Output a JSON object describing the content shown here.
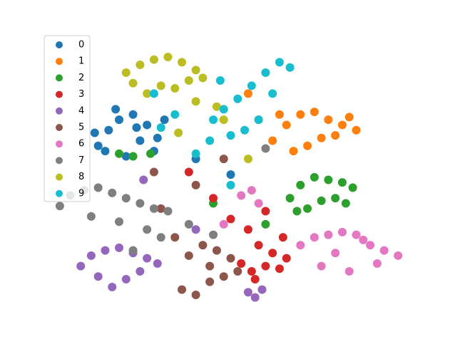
{
  "chart_data": {
    "type": "scatter",
    "xlim": [
      0,
      100
    ],
    "ylim": [
      0,
      100
    ],
    "legend": "upper left",
    "series": [
      {
        "name": "0",
        "color": "#1f77b4",
        "x": [
          12,
          15,
          18,
          22,
          26,
          29,
          14,
          20,
          24,
          17,
          28,
          11,
          23,
          31,
          40,
          50
        ],
        "values": [
          60,
          66,
          70,
          72,
          68,
          63,
          58,
          56,
          62,
          74,
          58,
          65,
          67,
          70,
          55,
          49
        ]
      },
      {
        "name": "1",
        "color": "#ff7f0e",
        "x": [
          62,
          66,
          70,
          74,
          78,
          82,
          86,
          72,
          68,
          76,
          80,
          64,
          84,
          58,
          55
        ],
        "values": [
          62,
          68,
          72,
          73,
          70,
          68,
          66,
          60,
          58,
          63,
          64,
          72,
          71,
          70,
          80
        ]
      },
      {
        "name": "2",
        "color": "#2ca02c",
        "x": [
          67,
          70,
          74,
          78,
          82,
          85,
          72,
          76,
          80,
          69,
          83,
          18,
          22,
          27,
          45,
          60
        ],
        "values": [
          40,
          45,
          48,
          47,
          46,
          44,
          36,
          39,
          40,
          35,
          38,
          57,
          56,
          57,
          38,
          30
        ]
      },
      {
        "name": "3",
        "color": "#d62728",
        "x": [
          53,
          56,
          60,
          64,
          58,
          62,
          66,
          55,
          50,
          45,
          60,
          38,
          57,
          65
        ],
        "values": [
          15,
          12,
          14,
          13,
          22,
          19,
          17,
          28,
          32,
          40,
          35,
          50,
          9,
          25
        ]
      },
      {
        "name": "4",
        "color": "#9467bd",
        "x": [
          7,
          10,
          14,
          18,
          22,
          26,
          29,
          12,
          20,
          24,
          16,
          55,
          57,
          59,
          25,
          40
        ],
        "values": [
          14,
          18,
          20,
          21,
          19,
          17,
          15,
          10,
          9,
          12,
          6,
          4,
          2,
          5,
          47,
          28
        ]
      },
      {
        "name": "5",
        "color": "#8c564b",
        "x": [
          36,
          40,
          44,
          48,
          52,
          38,
          42,
          46,
          50,
          34,
          44,
          30,
          28,
          40,
          48
        ],
        "values": [
          5,
          3,
          8,
          10,
          12,
          18,
          22,
          20,
          17,
          25,
          14,
          36,
          50,
          45,
          55
        ]
      },
      {
        "name": "6",
        "color": "#e377c2",
        "x": [
          70,
          74,
          78,
          82,
          86,
          90,
          94,
          98,
          76,
          84,
          92,
          88,
          80,
          53,
          56,
          58,
          48
        ],
        "values": [
          22,
          25,
          26,
          27,
          26,
          22,
          20,
          18,
          14,
          12,
          15,
          24,
          19,
          41,
          43,
          38,
          30
        ]
      },
      {
        "name": "7",
        "color": "#7f7f7f",
        "x": [
          1,
          4,
          8,
          12,
          16,
          20,
          24,
          28,
          32,
          10,
          18,
          26,
          30,
          22,
          38,
          45,
          60
        ],
        "values": [
          37,
          41,
          43,
          44,
          42,
          40,
          38,
          36,
          35,
          33,
          31,
          28,
          25,
          20,
          30,
          26,
          59
        ]
      },
      {
        "name": "8",
        "color": "#bcbd22",
        "x": [
          20,
          24,
          28,
          32,
          36,
          40,
          42,
          22,
          30,
          38,
          26,
          34,
          40,
          46,
          48,
          35,
          55
        ],
        "values": [
          88,
          91,
          93,
          94,
          92,
          89,
          86,
          84,
          83,
          85,
          80,
          82,
          77,
          75,
          70,
          65,
          55
        ]
      },
      {
        "name": "9",
        "color": "#17becf",
        "x": [
          45,
          48,
          52,
          56,
          60,
          64,
          67,
          50,
          54,
          58,
          62,
          47,
          44,
          40,
          34,
          28,
          50,
          30
        ],
        "values": [
          70,
          74,
          78,
          83,
          88,
          92,
          90,
          64,
          66,
          70,
          80,
          85,
          62,
          57,
          72,
          80,
          45,
          67
        ]
      }
    ]
  }
}
